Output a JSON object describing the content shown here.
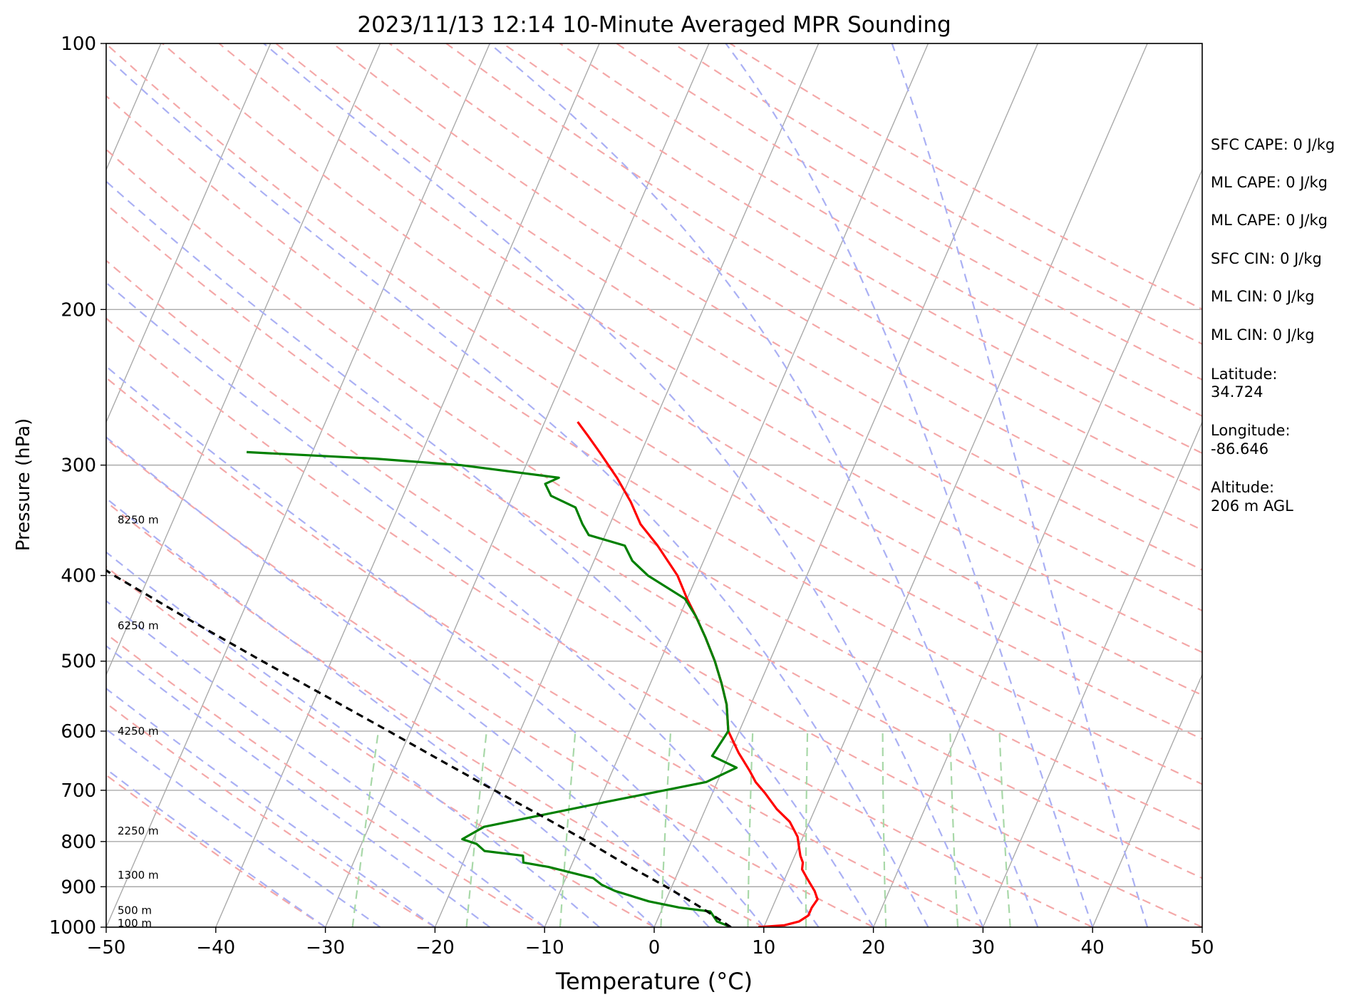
{
  "chart_data": {
    "type": "line",
    "subtype": "skew-T log-p sounding",
    "title": "2023/11/13 12:14 10-Minute Averaged MPR Sounding",
    "xlabel": "Temperature (°C)",
    "ylabel": "Pressure (hPa)",
    "xlim": [
      -50,
      50
    ],
    "ylim": [
      1000,
      100
    ],
    "y_scale": "log",
    "x_ticks": [
      "−50",
      "−40",
      "−30",
      "−20",
      "−10",
      "0",
      "10",
      "20",
      "30",
      "40",
      "50"
    ],
    "y_ticks": [
      "100",
      "200",
      "300",
      "400",
      "500",
      "600",
      "700",
      "800",
      "900",
      "1000"
    ],
    "grid": "pressure gridlines; skewed isotherms",
    "background_lines": {
      "isotherm_color": "#aaaaaa",
      "dry_adiabat_color": "#f4a8a8",
      "moist_adiabat_color": "#aab0f4",
      "mixing_ratio_color": "#a8d8a8"
    },
    "series": [
      {
        "color": "#ff0000",
        "points": [
          {
            "p": 1000,
            "t": 9.5
          },
          {
            "p": 995,
            "t": 11.8
          },
          {
            "p": 985,
            "t": 13.0
          },
          {
            "p": 970,
            "t": 13.6
          },
          {
            "p": 950,
            "t": 13.6
          },
          {
            "p": 930,
            "t": 13.8
          },
          {
            "p": 910,
            "t": 13.2
          },
          {
            "p": 880,
            "t": 12.0
          },
          {
            "p": 860,
            "t": 11.2
          },
          {
            "p": 845,
            "t": 11.0
          },
          {
            "p": 830,
            "t": 10.5
          },
          {
            "p": 810,
            "t": 10.0
          },
          {
            "p": 790,
            "t": 9.5
          },
          {
            "p": 760,
            "t": 8.2
          },
          {
            "p": 735,
            "t": 6.5
          },
          {
            "p": 705,
            "t": 4.8
          },
          {
            "p": 685,
            "t": 3.5
          },
          {
            "p": 665,
            "t": 2.5
          },
          {
            "p": 635,
            "t": 0.8
          },
          {
            "p": 600,
            "t": -1.0
          },
          {
            "p": 560,
            "t": -2.2
          },
          {
            "p": 530,
            "t": -3.5
          },
          {
            "p": 500,
            "t": -5.0
          },
          {
            "p": 470,
            "t": -6.8
          },
          {
            "p": 445,
            "t": -8.5
          },
          {
            "p": 425,
            "t": -10.0
          },
          {
            "p": 400,
            "t": -11.8
          },
          {
            "p": 370,
            "t": -14.8
          },
          {
            "p": 350,
            "t": -17.2
          },
          {
            "p": 330,
            "t": -19.0
          },
          {
            "p": 310,
            "t": -21.2
          },
          {
            "p": 290,
            "t": -23.8
          },
          {
            "p": 278,
            "t": -25.5
          },
          {
            "p": 268,
            "t": -27.0
          }
        ]
      },
      {
        "color": "#008000",
        "points": [
          {
            "p": 1000,
            "t": 7.0
          },
          {
            "p": 985,
            "t": 5.5
          },
          {
            "p": 960,
            "t": 4.5
          },
          {
            "p": 950,
            "t": 1.5
          },
          {
            "p": 935,
            "t": -1.5
          },
          {
            "p": 910,
            "t": -5.0
          },
          {
            "p": 895,
            "t": -6.5
          },
          {
            "p": 880,
            "t": -7.5
          },
          {
            "p": 855,
            "t": -12.0
          },
          {
            "p": 845,
            "t": -14.5
          },
          {
            "p": 830,
            "t": -14.8
          },
          {
            "p": 820,
            "t": -18.5
          },
          {
            "p": 805,
            "t": -19.5
          },
          {
            "p": 795,
            "t": -21.0
          },
          {
            "p": 770,
            "t": -19.5
          },
          {
            "p": 720,
            "t": -9.0
          },
          {
            "p": 685,
            "t": -1.0
          },
          {
            "p": 660,
            "t": 1.2
          },
          {
            "p": 640,
            "t": -1.5
          },
          {
            "p": 600,
            "t": -1.0
          },
          {
            "p": 560,
            "t": -2.2
          },
          {
            "p": 530,
            "t": -3.5
          },
          {
            "p": 500,
            "t": -5.0
          },
          {
            "p": 470,
            "t": -6.8
          },
          {
            "p": 445,
            "t": -8.5
          },
          {
            "p": 425,
            "t": -10.2
          },
          {
            "p": 400,
            "t": -14.5
          },
          {
            "p": 385,
            "t": -16.5
          },
          {
            "p": 370,
            "t": -17.8
          },
          {
            "p": 360,
            "t": -21.5
          },
          {
            "p": 350,
            "t": -22.5
          },
          {
            "p": 335,
            "t": -23.8
          },
          {
            "p": 325,
            "t": -26.5
          },
          {
            "p": 315,
            "t": -27.5
          },
          {
            "p": 310,
            "t": -26.5
          },
          {
            "p": 300,
            "t": -36.0
          },
          {
            "p": 295,
            "t": -44.0
          },
          {
            "p": 290,
            "t": -56.0
          }
        ]
      },
      {
        "color": "#000000",
        "dashed": true,
        "points": [
          {
            "p": 1000,
            "t": 7.0
          },
          {
            "p": 950,
            "t": 3.5
          },
          {
            "p": 900,
            "t": -0.5
          },
          {
            "p": 850,
            "t": -5.0
          },
          {
            "p": 800,
            "t": -9.5
          },
          {
            "p": 750,
            "t": -14.5
          },
          {
            "p": 700,
            "t": -20.0
          },
          {
            "p": 650,
            "t": -25.8
          },
          {
            "p": 600,
            "t": -32.0
          },
          {
            "p": 550,
            "t": -38.8
          },
          {
            "p": 500,
            "t": -46.3
          },
          {
            "p": 450,
            "t": -54.4
          },
          {
            "p": 400,
            "t": -63.2
          },
          {
            "p": 350,
            "t": -72.5
          },
          {
            "p": 300,
            "t": -82.8
          },
          {
            "p": 270,
            "t": -89.5
          }
        ]
      }
    ],
    "height_labels": [
      {
        "p": 346,
        "text": "8250 m"
      },
      {
        "p": 456,
        "text": "6250 m"
      },
      {
        "p": 600,
        "text": "4250 m"
      },
      {
        "p": 778,
        "text": "2250 m"
      },
      {
        "p": 873,
        "text": "1300 m"
      },
      {
        "p": 957,
        "text": "500 m"
      },
      {
        "p": 990,
        "text": "100 m"
      }
    ]
  },
  "annotations": {
    "stats": [
      "SFC CAPE: 0 J/kg",
      "ML CAPE: 0 J/kg",
      "ML CAPE: 0 J/kg",
      "SFC CIN: 0 J/kg",
      "ML CIN: 0 J/kg",
      "ML CIN: 0 J/kg"
    ],
    "latitude_label": "Latitude:",
    "latitude_value": "34.724",
    "longitude_label": "Longitude:",
    "longitude_value": "-86.646",
    "altitude_label": "Altitude:",
    "altitude_value": "206 m AGL"
  }
}
